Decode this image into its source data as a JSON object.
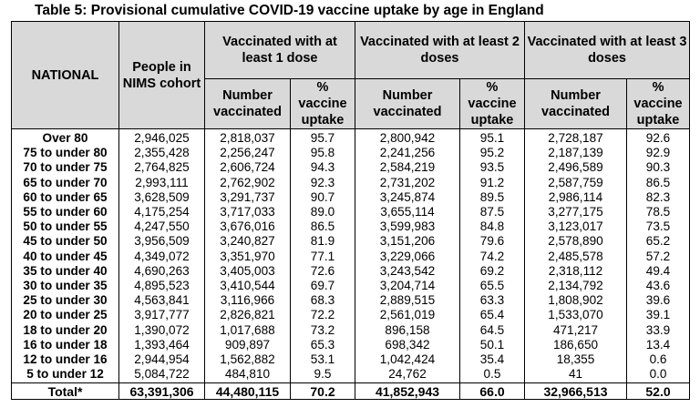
{
  "title": "Table 5: Provisional cumulative COVID-19 vaccine uptake by age in England",
  "headers": {
    "national": "NATIONAL",
    "cohort": "People in NIMS cohort",
    "dose1": "Vaccinated with at least 1 dose",
    "dose2": "Vaccinated with at least 2 doses",
    "dose3": "Vaccinated with at least 3 doses",
    "number": "Number vaccinated",
    "pct": "% vaccine uptake"
  },
  "rows": [
    {
      "age": "Over 80",
      "cohort": "2,946,025",
      "d1n": "2,818,037",
      "d1p": "95.7",
      "d2n": "2,800,942",
      "d2p": "95.1",
      "d3n": "2,728,187",
      "d3p": "92.6"
    },
    {
      "age": "75 to under 80",
      "cohort": "2,355,428",
      "d1n": "2,256,247",
      "d1p": "95.8",
      "d2n": "2,241,256",
      "d2p": "95.2",
      "d3n": "2,187,139",
      "d3p": "92.9"
    },
    {
      "age": "70 to under 75",
      "cohort": "2,764,825",
      "d1n": "2,606,724",
      "d1p": "94.3",
      "d2n": "2,584,219",
      "d2p": "93.5",
      "d3n": "2,496,589",
      "d3p": "90.3"
    },
    {
      "age": "65 to under 70",
      "cohort": "2,993,111",
      "d1n": "2,762,902",
      "d1p": "92.3",
      "d2n": "2,731,202",
      "d2p": "91.2",
      "d3n": "2,587,759",
      "d3p": "86.5"
    },
    {
      "age": "60 to under 65",
      "cohort": "3,628,509",
      "d1n": "3,291,737",
      "d1p": "90.7",
      "d2n": "3,245,874",
      "d2p": "89.5",
      "d3n": "2,986,114",
      "d3p": "82.3"
    },
    {
      "age": "55 to under 60",
      "cohort": "4,175,254",
      "d1n": "3,717,033",
      "d1p": "89.0",
      "d2n": "3,655,114",
      "d2p": "87.5",
      "d3n": "3,277,175",
      "d3p": "78.5"
    },
    {
      "age": "50 to under 55",
      "cohort": "4,247,550",
      "d1n": "3,676,016",
      "d1p": "86.5",
      "d2n": "3,599,983",
      "d2p": "84.8",
      "d3n": "3,123,017",
      "d3p": "73.5"
    },
    {
      "age": "45 to under 50",
      "cohort": "3,956,509",
      "d1n": "3,240,827",
      "d1p": "81.9",
      "d2n": "3,151,206",
      "d2p": "79.6",
      "d3n": "2,578,890",
      "d3p": "65.2"
    },
    {
      "age": "40 to under 45",
      "cohort": "4,349,072",
      "d1n": "3,351,970",
      "d1p": "77.1",
      "d2n": "3,229,066",
      "d2p": "74.2",
      "d3n": "2,485,578",
      "d3p": "57.2"
    },
    {
      "age": "35 to under 40",
      "cohort": "4,690,263",
      "d1n": "3,405,003",
      "d1p": "72.6",
      "d2n": "3,243,542",
      "d2p": "69.2",
      "d3n": "2,318,112",
      "d3p": "49.4"
    },
    {
      "age": "30 to under 35",
      "cohort": "4,895,523",
      "d1n": "3,410,544",
      "d1p": "69.7",
      "d2n": "3,204,714",
      "d2p": "65.5",
      "d3n": "2,134,792",
      "d3p": "43.6"
    },
    {
      "age": "25 to under 30",
      "cohort": "4,563,841",
      "d1n": "3,116,966",
      "d1p": "68.3",
      "d2n": "2,889,515",
      "d2p": "63.3",
      "d3n": "1,808,902",
      "d3p": "39.6"
    },
    {
      "age": "20 to under 25",
      "cohort": "3,917,777",
      "d1n": "2,826,821",
      "d1p": "72.2",
      "d2n": "2,561,019",
      "d2p": "65.4",
      "d3n": "1,533,070",
      "d3p": "39.1"
    },
    {
      "age": "18 to under 20",
      "cohort": "1,390,072",
      "d1n": "1,017,688",
      "d1p": "73.2",
      "d2n": "896,158",
      "d2p": "64.5",
      "d3n": "471,217",
      "d3p": "33.9"
    },
    {
      "age": "16 to under 18",
      "cohort": "1,393,464",
      "d1n": "909,897",
      "d1p": "65.3",
      "d2n": "698,342",
      "d2p": "50.1",
      "d3n": "186,650",
      "d3p": "13.4"
    },
    {
      "age": "12 to under 16",
      "cohort": "2,944,954",
      "d1n": "1,562,882",
      "d1p": "53.1",
      "d2n": "1,042,424",
      "d2p": "35.4",
      "d3n": "18,355",
      "d3p": "0.6"
    },
    {
      "age": "5 to under 12",
      "cohort": "5,084,722",
      "d1n": "484,810",
      "d1p": "9.5",
      "d2n": "24,762",
      "d2p": "0.5",
      "d3n": "41",
      "d3p": "0.0"
    }
  ],
  "total": {
    "age": "Total*",
    "cohort": "63,391,306",
    "d1n": "44,480,115",
    "d1p": "70.2",
    "d2n": "41,852,943",
    "d2p": "66.0",
    "d3n": "32,966,513",
    "d3p": "52.0"
  }
}
